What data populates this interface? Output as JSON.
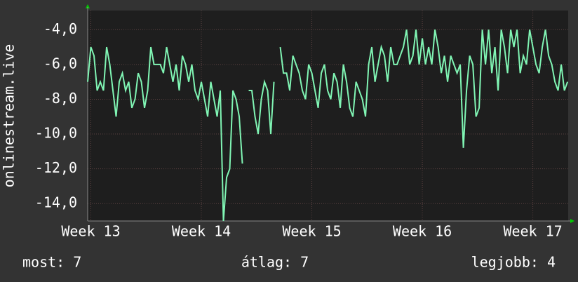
{
  "chart_data": {
    "type": "line",
    "y_label": "onlinestream.live",
    "x": [
      0,
      1,
      2,
      3,
      4,
      5,
      6,
      7,
      8,
      9,
      10,
      11,
      12,
      13,
      14,
      15,
      16,
      17,
      18,
      19,
      20,
      21,
      22,
      23,
      24,
      25,
      26,
      27,
      28,
      29,
      30,
      31,
      32,
      33,
      34,
      35,
      36,
      37,
      38,
      39,
      40,
      41,
      42,
      43,
      44,
      45,
      46,
      47,
      48,
      49,
      50,
      51,
      52,
      53,
      54,
      55,
      56,
      57,
      58,
      59,
      60,
      61,
      62,
      63,
      64,
      65,
      66,
      67,
      68,
      69,
      70,
      71,
      72,
      73,
      74,
      75,
      76,
      77,
      78,
      79,
      80,
      81,
      82,
      83,
      84,
      85,
      86,
      87,
      88,
      89,
      90,
      91,
      92,
      93,
      94,
      95,
      96,
      97,
      98,
      99,
      100,
      101,
      102,
      103,
      104,
      105,
      106,
      107,
      108,
      109,
      110,
      111,
      112,
      113,
      114,
      115,
      116,
      117,
      118,
      119,
      120,
      121,
      122,
      123,
      124,
      125,
      126,
      127,
      128,
      129,
      130,
      131,
      132,
      133,
      134,
      135,
      136,
      137,
      138,
      139,
      140,
      141,
      142,
      143,
      144,
      145,
      146,
      147,
      148,
      149,
      150,
      151,
      152
    ],
    "series": [
      {
        "color": "#80f5b4",
        "values": [
          -7,
          -5,
          -5.5,
          -7.5,
          -7,
          -7.5,
          -5,
          -6,
          -7.5,
          -9,
          -7,
          -6.5,
          -7.5,
          -7,
          -8.5,
          -8,
          -6.5,
          -7,
          -8.5,
          -7.5,
          -5,
          -6,
          -6,
          -6,
          -6.5,
          -5,
          -6,
          -7,
          -6,
          -7.5,
          -5.5,
          -6,
          -7,
          -6,
          -7.5,
          -8,
          -7,
          -8,
          -9,
          -7,
          -8,
          -9,
          -7.5,
          -15,
          -12.5,
          -12,
          -7.5,
          -8,
          -9,
          -11.7,
          null,
          -7.5,
          -7.5,
          -9,
          -10,
          -8,
          -7,
          -7.5,
          -10,
          -7,
          null,
          -5,
          -6.5,
          -6.5,
          -7.5,
          -5.5,
          -6,
          -6.5,
          -7.5,
          -8,
          -6,
          -6.5,
          -7.5,
          -8.5,
          -6.5,
          -6,
          -7.5,
          -8,
          -6.5,
          -7,
          -8.5,
          -6,
          -7,
          -8.5,
          -9,
          -7,
          -7.5,
          -8,
          -9,
          -6,
          -5,
          -7,
          -6,
          -5,
          -5.5,
          -7,
          -5,
          -6,
          -6,
          -5.5,
          -5,
          -4,
          -6,
          -5.5,
          -4,
          -6,
          -4.5,
          -6,
          -5,
          -6,
          -4,
          -5,
          -6.5,
          -5.5,
          -7,
          -5.5,
          -6,
          -6.5,
          -6,
          -10.8,
          -7.5,
          -5.5,
          -6,
          -9,
          -8.5,
          -4,
          -6,
          -4,
          -6.5,
          -5,
          -7.5,
          -4,
          -5,
          -6.5,
          -4,
          -5,
          -4,
          -6.5,
          -5.5,
          -6,
          -4,
          -5,
          -6,
          -6.5,
          -5,
          -4,
          -5.5,
          -6,
          -7,
          -7.5,
          -6,
          -7.5,
          -7
        ]
      }
    ],
    "xlim": [
      0,
      152.2
    ],
    "xticks": [
      {
        "value": 1,
        "label": "Week 13"
      },
      {
        "value": 36,
        "label": "Week 14"
      },
      {
        "value": 71,
        "label": "Week 15"
      },
      {
        "value": 106,
        "label": "Week 16"
      },
      {
        "value": 141,
        "label": "Week 17"
      }
    ],
    "ylim": [
      -15,
      -2.9
    ],
    "yticks": [
      {
        "value": -4,
        "label": "-4,0"
      },
      {
        "value": -6,
        "label": "-6,0"
      },
      {
        "value": -8,
        "label": "-8,0"
      },
      {
        "value": -10,
        "label": "-10,0"
      },
      {
        "value": -12,
        "label": "-12,0"
      },
      {
        "value": -14,
        "label": "-14,0"
      }
    ],
    "grid": true,
    "stats": [
      "most: 7",
      "átlag: 7",
      "legjobb: 4"
    ]
  }
}
